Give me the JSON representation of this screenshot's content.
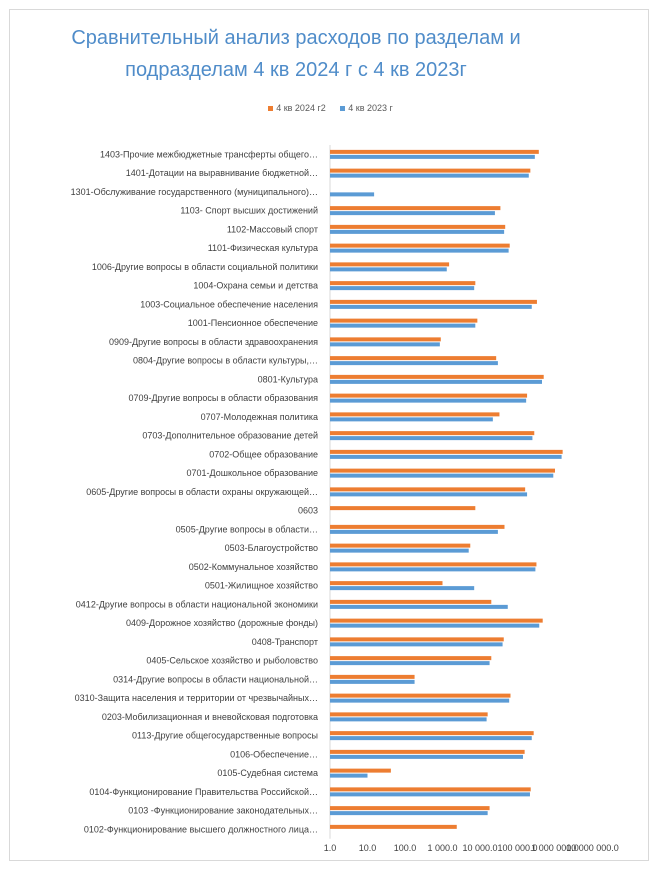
{
  "chart_data": {
    "type": "bar",
    "orientation": "horizontal",
    "scale": "log10",
    "title": [
      "Сравнительный анализ расходов по разделам и",
      "подразделам 4 кв 2024 г с 4 кв 2023г"
    ],
    "legend_position": "top",
    "xlim": [
      1,
      10000000
    ],
    "x_ticks": [
      "1.0",
      "10.0",
      "100.0",
      "1 000.0",
      "10 000.0",
      "100 000.0",
      "1 000 000.0",
      "10 000 000.0"
    ],
    "categories": [
      "1403-Прочие межбюджетные трансферты общего…",
      "1401-Дотации на выравнивание бюджетной…",
      "1301-Обслуживание государственного (муниципального)…",
      "1103- Спорт высших достижений",
      "1102-Массовый спорт",
      "1101-Физическая культура",
      "1006-Другие вопросы в области социальной политики",
      "1004-Охрана семьи и детства",
      "1003-Социальное обеспечение населения",
      "1001-Пенсионное обеспечение",
      "0909-Другие вопросы в области здравоохранения",
      "0804-Другие вопросы в области культуры,…",
      "0801-Культура",
      "0709-Другие вопросы в области образования",
      "0707-Молодежная политика",
      "0703-Дополнительное образование детей",
      "0702-Общее образование",
      "0701-Дошкольное образование",
      "0605-Другие вопросы в области охраны окружающей…",
      "0603",
      "0505-Другие вопросы в области…",
      "0503-Благоустройство",
      "0502-Коммунальное хозяйство",
      "0501-Жилищное хозяйство",
      "0412-Другие вопросы в области национальной экономики",
      "0409-Дорожное хозяйство (дорожные фонды)",
      "0408-Транспорт",
      "0405-Сельское хозяйство и рыболовство",
      "0314-Другие вопросы в области национальной…",
      "0310-Защита населения и территории от чрезвычайных…",
      "0203-Мобилизационная и вневойсковая подготовка",
      "0113-Другие общегосударственные вопросы",
      "0106-Обеспечение…",
      "0105-Судебная система",
      "0104-Функционирование Правительства Российской…",
      "0103 -Функционирование законодательных…",
      "0102-Функционирование высшего должностного лица…"
    ],
    "series": [
      {
        "name": "4 кв 2024 г2",
        "color": "#ed7d31",
        "values": [
          370000,
          220000,
          null,
          35000,
          47000,
          62000,
          1500,
          7500,
          330000,
          8500,
          900,
          27000,
          500000,
          180000,
          33000,
          280000,
          1600000,
          1000000,
          160000,
          7500,
          45000,
          5500,
          320000,
          1000,
          20000,
          470000,
          43000,
          20000,
          180,
          65000,
          16000,
          270000,
          155000,
          42,
          225000,
          18000,
          2400
        ]
      },
      {
        "name": "4 кв 2023 г",
        "color": "#5b9bd5",
        "values": [
          290000,
          200000,
          15,
          25000,
          44000,
          58000,
          1300,
          7000,
          240000,
          7500,
          850,
          30000,
          450000,
          170000,
          22000,
          250000,
          1500000,
          900000,
          180000,
          null,
          30000,
          5000,
          300000,
          7000,
          55000,
          380000,
          40000,
          18000,
          180,
          60000,
          15000,
          240000,
          140000,
          10,
          215000,
          16000,
          null
        ]
      }
    ]
  }
}
